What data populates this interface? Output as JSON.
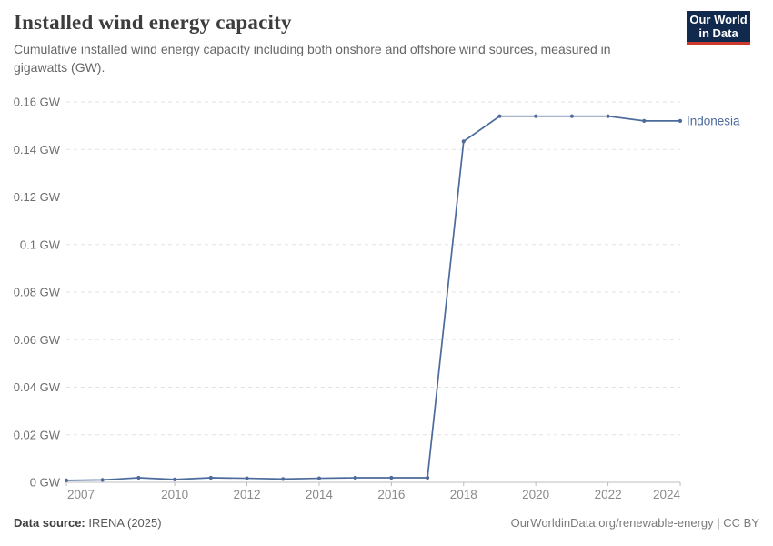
{
  "header": {
    "title": "Installed wind energy capacity",
    "subtitle": "Cumulative installed wind energy capacity including both onshore and offshore wind sources, measured in gigawatts (GW).",
    "logo": {
      "line1": "Our World",
      "line2": "in Data",
      "bg": "#10294d",
      "stripe": "#cc3a2d"
    }
  },
  "chart_data": {
    "type": "line",
    "title": "Installed wind energy capacity",
    "unit": "GW",
    "x": [
      2007,
      2008,
      2009,
      2010,
      2011,
      2012,
      2013,
      2014,
      2015,
      2016,
      2017,
      2018,
      2019,
      2020,
      2021,
      2022,
      2023,
      2024
    ],
    "series": [
      {
        "name": "Indonesia",
        "color": "#4c6a9c",
        "values": [
          0.0008,
          0.001,
          0.0019,
          0.0012,
          0.0019,
          0.0017,
          0.0014,
          0.0017,
          0.0019,
          0.0019,
          0.0019,
          0.1434,
          0.154,
          0.154,
          0.154,
          0.154,
          0.152,
          0.152
        ]
      }
    ],
    "ylim": [
      0,
      0.16
    ],
    "yticks": [
      {
        "value": 0,
        "label": "0 GW"
      },
      {
        "value": 0.02,
        "label": "0.02 GW"
      },
      {
        "value": 0.04,
        "label": "0.04 GW"
      },
      {
        "value": 0.06,
        "label": "0.06 GW"
      },
      {
        "value": 0.08,
        "label": "0.08 GW"
      },
      {
        "value": 0.1,
        "label": "0.1 GW"
      },
      {
        "value": 0.12,
        "label": "0.12 GW"
      },
      {
        "value": 0.14,
        "label": "0.14 GW"
      },
      {
        "value": 0.16,
        "label": "0.16 GW"
      }
    ],
    "xticks": [
      2007,
      2010,
      2012,
      2014,
      2016,
      2018,
      2020,
      2022,
      2024
    ],
    "grid": "horizontal-dashed",
    "legend_position": "line-end-label",
    "colors": {
      "gridline": "#e2e2e2",
      "axis_line": "#bcbcbc",
      "y_tick_label": "#6d6d6d",
      "x_tick_label": "#8a8a8a"
    }
  },
  "footer": {
    "source_label": "Data source:",
    "source_value": "IRENA (2025)",
    "credit": "OurWorldinData.org/renewable-energy | CC BY"
  }
}
